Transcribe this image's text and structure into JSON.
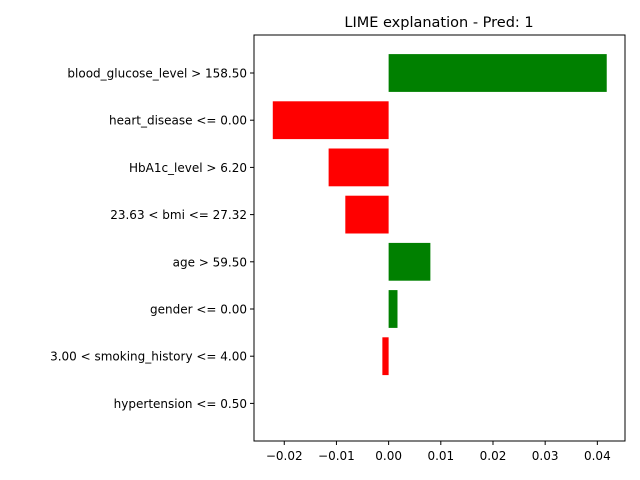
{
  "chart_data": {
    "type": "bar",
    "orientation": "horizontal",
    "title": "LIME explanation - Pred: 1",
    "xlabel": "",
    "ylabel": "",
    "xlim": [
      -0.0258,
      0.0453
    ],
    "xticks": [
      -0.02,
      -0.01,
      0.0,
      0.01,
      0.02,
      0.03,
      0.04
    ],
    "xtick_labels": [
      "−0.02",
      "−0.01",
      "0.00",
      "0.01",
      "0.02",
      "0.03",
      "0.04"
    ],
    "categories": [
      "blood_glucose_level > 158.50",
      "heart_disease <= 0.00",
      "HbA1c_level > 6.20",
      "23.63 < bmi <= 27.32",
      "age > 59.50",
      "gender <= 0.00",
      "3.00 < smoking_history <= 4.00",
      "hypertension <= 0.50"
    ],
    "values": [
      0.0418,
      -0.0222,
      -0.0115,
      -0.0083,
      0.008,
      0.0017,
      -0.0012,
      0.0
    ],
    "colors": {
      "positive": "#008000",
      "negative": "#ff0000"
    },
    "grid": false,
    "legend": "none"
  }
}
